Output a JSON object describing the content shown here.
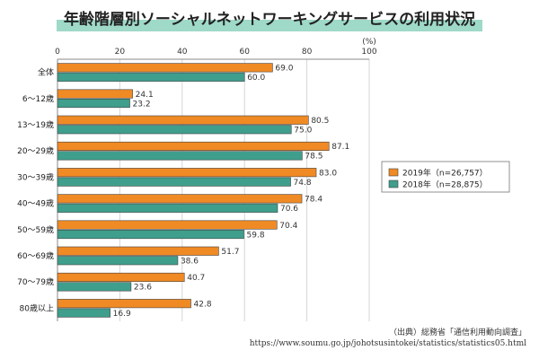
{
  "title": "年齢階層別ソーシャルネットワーキングサービスの利用状況",
  "source": "（出典）総務省「通信利用動向調査」",
  "url": "https://www.soumu.go.jp/johotsusintokei/statistics/statistics05.html",
  "chart_data": {
    "type": "bar",
    "orientation": "horizontal",
    "unit": "(%)",
    "xlim": [
      0,
      100
    ],
    "xticks": [
      0,
      20,
      40,
      60,
      80,
      100
    ],
    "grid": true,
    "legend_position": "right",
    "categories": [
      "全体",
      "6～12歳",
      "13～19歳",
      "20～29歳",
      "30～39歳",
      "40～49歳",
      "50～59歳",
      "60～69歳",
      "70～79歳",
      "80歳以上"
    ],
    "series": [
      {
        "name": "2019年（n=26,757）",
        "color": "#f08a24",
        "values": [
          69.0,
          24.1,
          80.5,
          87.1,
          83.0,
          78.4,
          70.4,
          51.7,
          40.7,
          42.8
        ]
      },
      {
        "name": "2018年（n=28,875）",
        "color": "#3f9e8c",
        "values": [
          60.0,
          23.2,
          75.0,
          78.5,
          74.8,
          70.6,
          59.8,
          38.6,
          23.6,
          16.9
        ]
      }
    ]
  }
}
